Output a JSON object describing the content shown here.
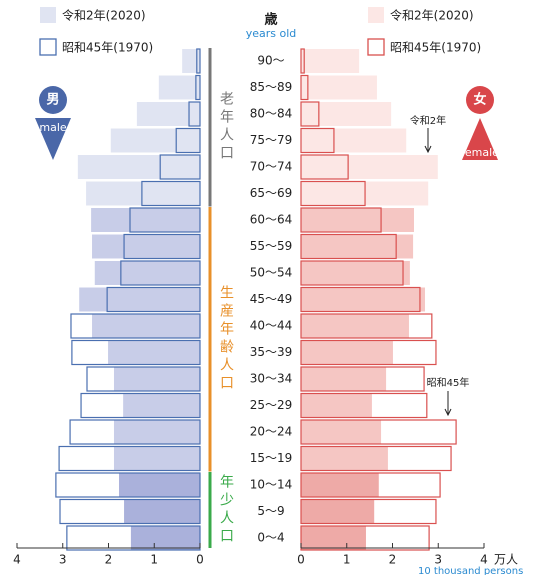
{
  "chart_data": {
    "type": "pyramid",
    "y_label": "歳",
    "y_label_en": "years old",
    "categories": [
      "90〜",
      "85〜89",
      "80〜84",
      "75〜79",
      "70〜74",
      "65〜69",
      "60〜64",
      "55〜59",
      "50〜54",
      "45〜49",
      "40〜44",
      "35〜39",
      "30〜34",
      "25〜29",
      "20〜24",
      "15〜19",
      "10〜14",
      "5〜9",
      "0〜4"
    ],
    "xlim": [
      0,
      4
    ],
    "xticks": [
      0,
      1,
      2,
      3,
      4
    ],
    "x_unit": "万人",
    "x_unit_en": "10 thousand persons",
    "groups": [
      {
        "label": "老年人口",
        "color": "#777777",
        "rows": 6
      },
      {
        "label": "生産年齢人口",
        "color": "#e8902a",
        "rows": 10
      },
      {
        "label": "年少人口",
        "color": "#3aaa4a",
        "rows": 3
      }
    ],
    "sides": [
      {
        "label": "男",
        "label_en": "male",
        "color": "#4a67a8",
        "series": [
          {
            "name": "令和2年(2020)",
            "colors": [
              "#e0e4f2",
              "#c8cde8",
              "#aab1db"
            ],
            "values": [
              0.39,
              0.9,
              1.38,
              1.95,
              2.67,
              2.49,
              2.38,
              2.36,
              2.3,
              2.64,
              2.36,
              2.01,
              1.88,
              1.68,
              1.88,
              1.88,
              1.77,
              1.66,
              1.51
            ]
          },
          {
            "name": "昭和45年(1970)",
            "color": "#4a6fb0",
            "values": [
              0.07,
              0.09,
              0.24,
              0.52,
              0.87,
              1.27,
              1.53,
              1.66,
              1.73,
              2.03,
              2.82,
              2.8,
              2.47,
              2.6,
              2.84,
              3.08,
              3.15,
              3.06,
              2.91
            ]
          }
        ]
      },
      {
        "label": "女",
        "label_en": "female",
        "color": "#d9464a",
        "series": [
          {
            "name": "令和2年(2020)",
            "colors": [
              "#fce7e5",
              "#f5c6c3",
              "#eeaaa7"
            ],
            "values": [
              1.27,
              1.66,
              1.97,
              2.3,
              2.99,
              2.78,
              2.47,
              2.45,
              2.38,
              2.71,
              2.36,
              2.01,
              1.86,
              1.55,
              1.75,
              1.9,
              1.7,
              1.6,
              1.42
            ]
          },
          {
            "name": "昭和45年(1970)",
            "color": "#d9504f",
            "values": [
              0.07,
              0.15,
              0.39,
              0.72,
              1.03,
              1.4,
              1.75,
              2.08,
              2.23,
              2.6,
              2.86,
              2.95,
              2.69,
              2.75,
              3.39,
              3.28,
              3.04,
              2.95,
              2.8
            ]
          }
        ]
      }
    ],
    "annotations": [
      {
        "text": "令和2年"
      },
      {
        "text": "昭和45年"
      }
    ]
  }
}
